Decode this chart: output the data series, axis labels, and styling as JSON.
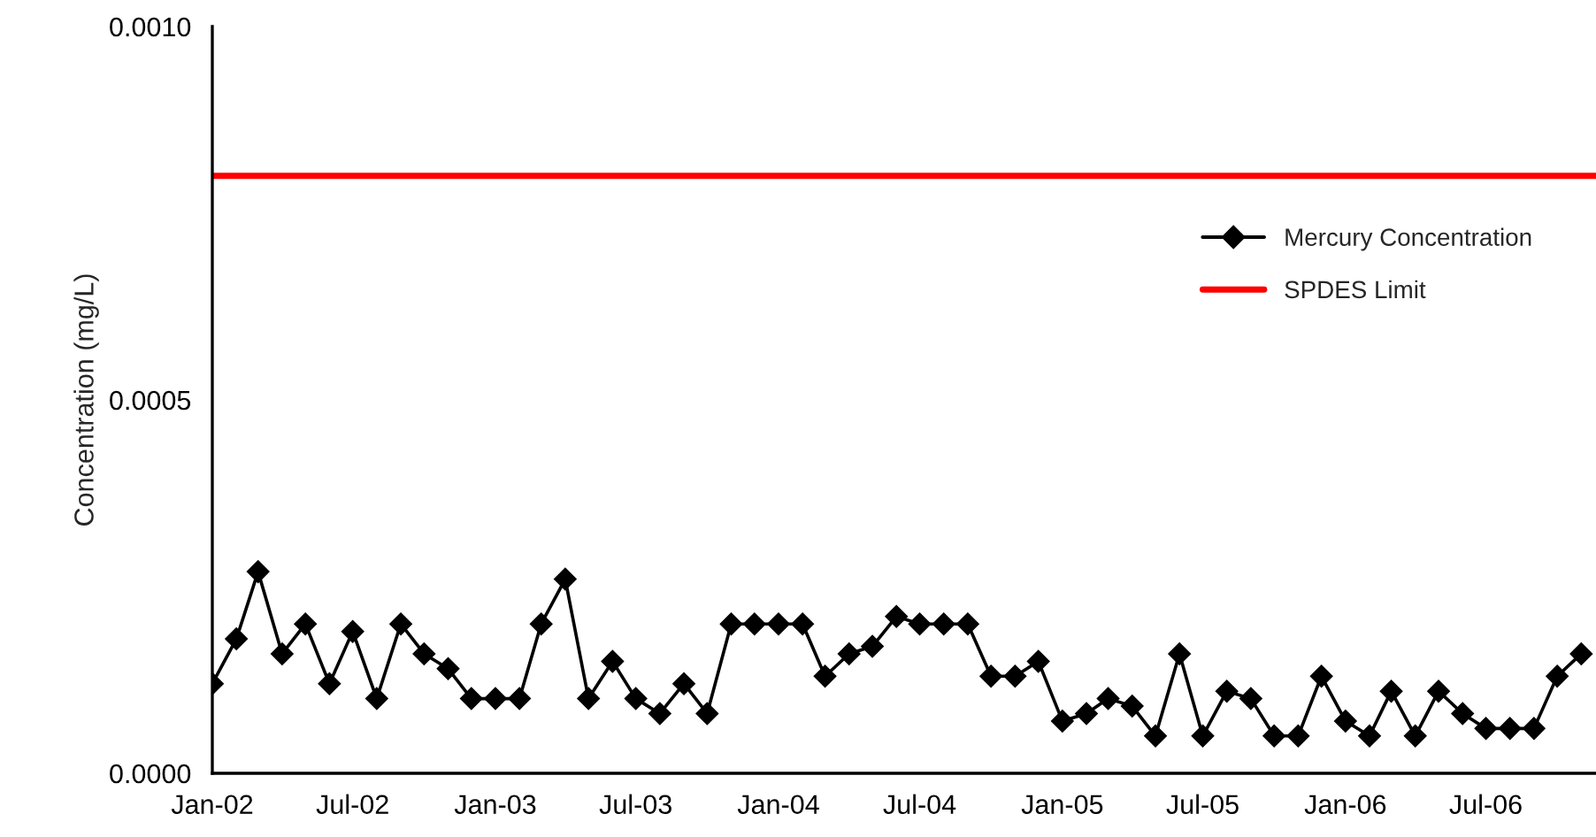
{
  "chart_data": {
    "type": "line",
    "ylabel": "Concentration (mg/L)",
    "x": [
      "2002-01",
      "2002-02",
      "2002-03",
      "2002-04",
      "2002-05",
      "2002-06",
      "2002-07",
      "2002-08",
      "2002-09",
      "2002-10",
      "2002-11",
      "2002-12",
      "2003-01",
      "2003-02",
      "2003-03",
      "2003-04",
      "2003-05",
      "2003-06",
      "2003-07",
      "2003-08",
      "2003-09",
      "2003-10",
      "2003-11",
      "2003-12",
      "2004-01",
      "2004-02",
      "2004-03",
      "2004-04",
      "2004-05",
      "2004-06",
      "2004-07",
      "2004-08",
      "2004-09",
      "2004-10",
      "2004-11",
      "2004-12",
      "2005-01",
      "2005-02",
      "2005-03",
      "2005-04",
      "2005-05",
      "2005-06",
      "2005-07",
      "2005-08",
      "2005-09",
      "2005-10",
      "2005-11",
      "2005-12",
      "2006-01",
      "2006-02",
      "2006-03",
      "2006-04",
      "2006-05",
      "2006-06",
      "2006-07",
      "2006-08",
      "2006-09",
      "2006-10",
      "2006-11"
    ],
    "series": [
      {
        "name": "Mercury Concentration",
        "color": "#000000",
        "values": [
          0.00012,
          0.00018,
          0.00027,
          0.00016,
          0.0002,
          0.00012,
          0.00019,
          0.0001,
          0.0002,
          0.00016,
          0.00014,
          0.0001,
          0.0001,
          0.0001,
          0.0002,
          0.00026,
          0.0001,
          0.00015,
          0.0001,
          8e-05,
          0.00012,
          8e-05,
          0.0002,
          0.0002,
          0.0002,
          0.0002,
          0.00013,
          0.00016,
          0.00017,
          0.00021,
          0.0002,
          0.0002,
          0.0002,
          0.00013,
          0.00013,
          0.00015,
          7e-05,
          8e-05,
          0.0001,
          9e-05,
          5e-05,
          0.00016,
          5e-05,
          0.00011,
          0.0001,
          5e-05,
          5e-05,
          0.00013,
          7e-05,
          5e-05,
          0.00011,
          5e-05,
          0.00011,
          8e-05,
          6e-05,
          6e-05,
          6e-05,
          0.00013,
          0.00016
        ]
      }
    ],
    "ref_lines": [
      {
        "axis": "y",
        "value": 0.0008,
        "label": "SPDES Limit",
        "color": "#ff0000"
      }
    ],
    "marker": "diamond",
    "line_style": "solid",
    "legend": "top right",
    "grid": false,
    "xlim": [
      "2002-01",
      "2006-11-20"
    ],
    "xticks": [
      {
        "value": "2002-01",
        "label": "Jan-02"
      },
      {
        "value": "2002-07",
        "label": "Jul-02"
      },
      {
        "value": "2003-01",
        "label": "Jan-03"
      },
      {
        "value": "2003-07",
        "label": "Jul-03"
      },
      {
        "value": "2004-01",
        "label": "Jan-04"
      },
      {
        "value": "2004-07",
        "label": "Jul-04"
      },
      {
        "value": "2005-01",
        "label": "Jan-05"
      },
      {
        "value": "2005-07",
        "label": "Jul-05"
      },
      {
        "value": "2006-01",
        "label": "Jan-06"
      },
      {
        "value": "2006-07",
        "label": "Jul-06"
      }
    ],
    "ylim": [
      0,
      0.001
    ],
    "yticks": [
      {
        "value": 0,
        "label": "0.0000"
      },
      {
        "value": 0.0005,
        "label": "0.0005"
      },
      {
        "value": 0.001,
        "label": "0.0010"
      }
    ]
  }
}
